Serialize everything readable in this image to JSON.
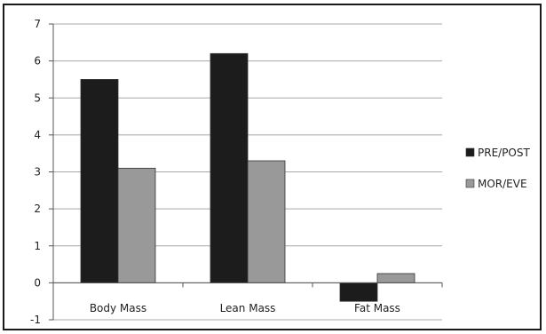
{
  "chart_data": {
    "type": "bar",
    "categories": [
      "Body Mass",
      "Lean Mass",
      "Fat Mass"
    ],
    "series": [
      {
        "name": "PRE/POST",
        "values": [
          5.5,
          6.2,
          -0.5
        ],
        "color": "#1c1c1c"
      },
      {
        "name": "MOR/EVE",
        "values": [
          3.1,
          3.3,
          0.25
        ],
        "color": "#999999"
      }
    ],
    "ylim": [
      -1,
      7
    ],
    "yticks": [
      -1,
      0,
      1,
      2,
      3,
      4,
      5,
      6,
      7
    ],
    "grid": true,
    "legend_position": "right"
  }
}
